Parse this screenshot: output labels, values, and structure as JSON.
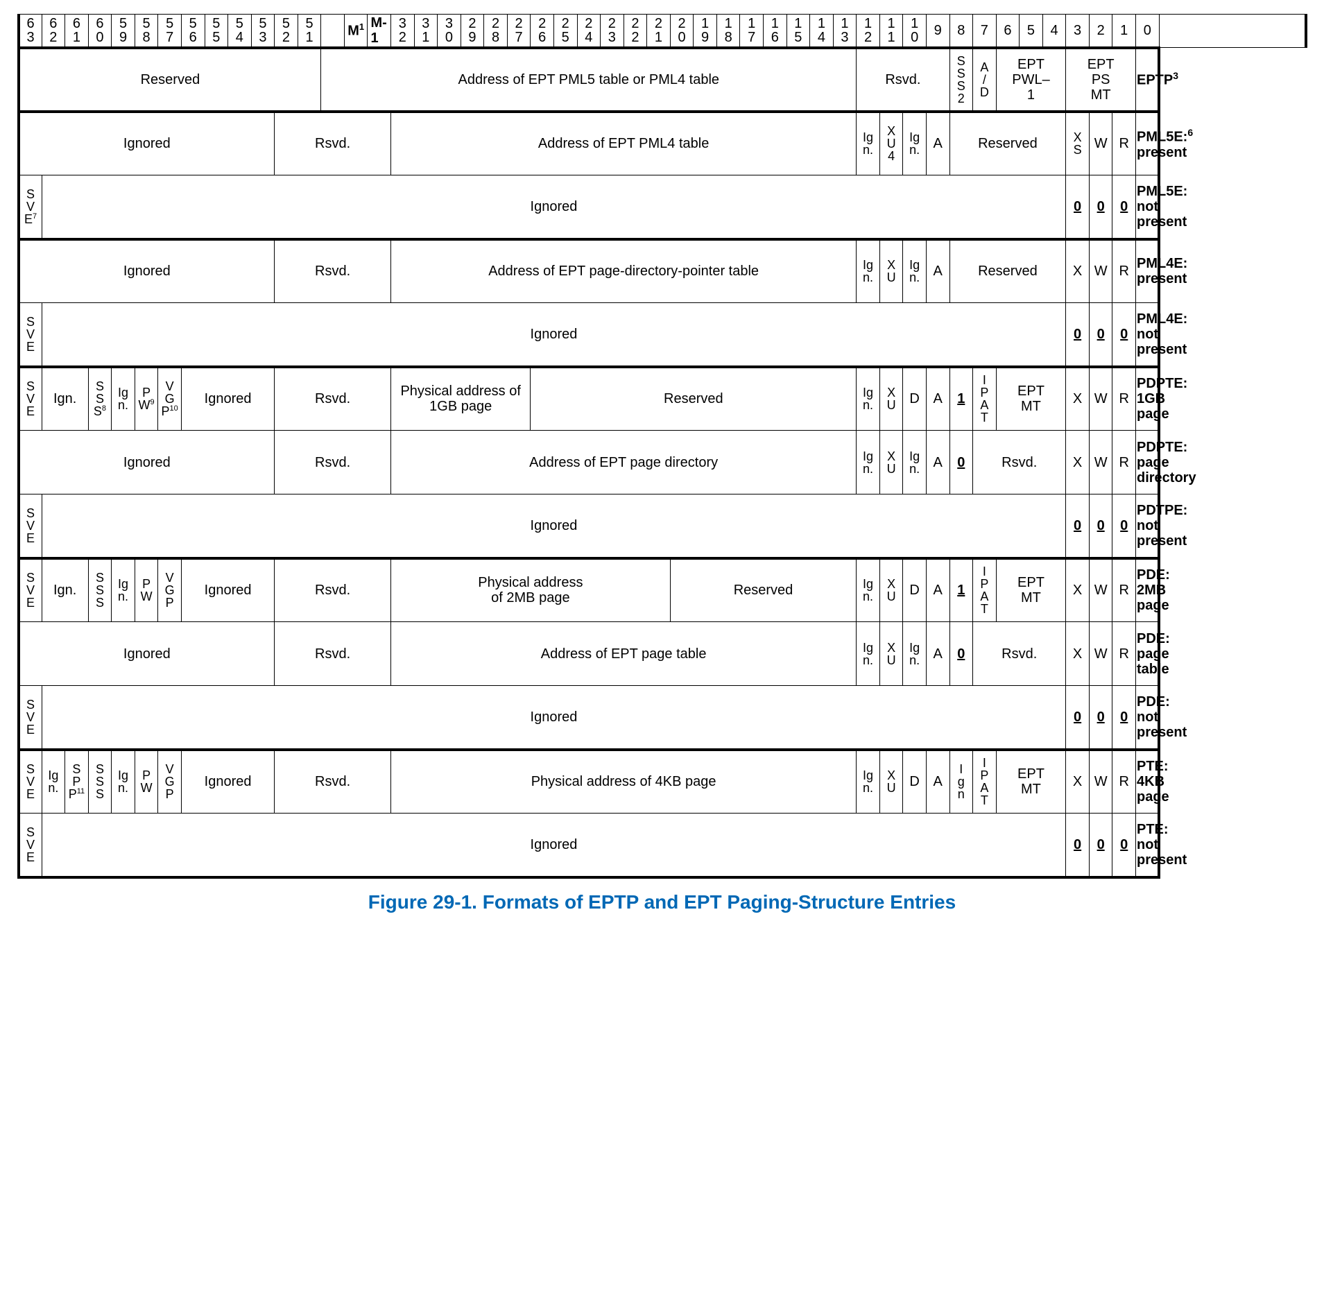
{
  "caption": "Figure 29-1.  Formats of EPTP and EPT Paging-Structure Entries",
  "colors": {
    "caption": "#0068b5",
    "border": "#000000",
    "bg": "#ffffff",
    "text": "#000000"
  },
  "headerBits": [
    63,
    62,
    61,
    60,
    59,
    58,
    57,
    56,
    55,
    54,
    53,
    52,
    51,
    null,
    "M",
    null,
    32,
    31,
    30,
    29,
    28,
    27,
    26,
    25,
    24,
    23,
    22,
    21,
    20,
    19,
    18,
    17,
    16,
    15,
    14,
    13,
    12,
    11,
    10,
    9,
    8,
    7,
    6,
    5,
    4,
    3,
    2,
    1,
    0
  ],
  "headerSpecial": {
    "m_sup": "1",
    "mminus": "M-1"
  },
  "layout": {
    "totalBitCols": 49,
    "bitColWidthPx": 27,
    "labelColWidthPx": 170,
    "rowHeightPx": 92,
    "outerBorderPx": 4,
    "innerBorderPx": 1
  },
  "labels": {
    "reserved": "Reserved",
    "rsvd": "Rsvd.",
    "ignored": "Ignored",
    "ign": "Ig\nn.",
    "sve": "S\nV\nE",
    "sve7": "S\nV\nE⁷",
    "xu": "X\nU",
    "xu4": "X\nU\n4",
    "xs": "X\nS",
    "a": "A",
    "d": "D",
    "one": "1",
    "zero": "0",
    "ipat": "I\nP\nA\nT",
    "eptmt": "EPT\nMT",
    "eptpwl1": "EPT\nPWL–\n1",
    "eptpsmt": "EPT\nPS\nMT",
    "sss": "S\nS\nS",
    "sss2": "S\nS\nS\n2",
    "sss8": "S\nS\nS\n8",
    "pw": "P\nW",
    "pw9": "P\nW\n9",
    "vgp": "V\nG\nP",
    "vgp10": "V\nG\nP\n10",
    "spp11": "S\nP\nP\n11",
    "ad": "A\n/\nD",
    "x": "X",
    "w": "W",
    "r": "R",
    "i_g_n": "I\ng\nn"
  },
  "rows": [
    {
      "name": "EPTP",
      "sup": "3",
      "cells": [
        {
          "span": 13,
          "text": "Reserved"
        },
        {
          "span": 23,
          "text": "Address of EPT PML5 table or PML4 table"
        },
        {
          "span": 4,
          "text": "Rsvd."
        },
        {
          "span": 1,
          "v": "S\nS\nS\n2"
        },
        {
          "span": 1,
          "v": "A\n/\nD"
        },
        {
          "span": 3,
          "text": "EPT\nPWL–\n1"
        },
        {
          "span": 3,
          "text": "EPT\nPS\nMT"
        }
      ]
    },
    {
      "name": "PML5E: present",
      "sup": "6",
      "heavy": true,
      "cells": [
        {
          "span": 11,
          "text": "Ignored"
        },
        {
          "span": 5,
          "text": "Rsvd."
        },
        {
          "span": 20,
          "text": "Address of EPT PML4 table"
        },
        {
          "span": 1,
          "v": "Ig\nn."
        },
        {
          "span": 1,
          "v": "X\nU\n4"
        },
        {
          "span": 1,
          "v": "Ig\nn."
        },
        {
          "span": 1,
          "text": "A"
        },
        {
          "span": 5,
          "text": "Reserved"
        },
        {
          "span": 1,
          "v": "X\nS"
        },
        {
          "span": 1,
          "text": "W"
        },
        {
          "span": 1,
          "text": "R"
        }
      ]
    },
    {
      "name": "PML5E: not present",
      "cells": [
        {
          "span": 1,
          "v": "S\nV\nE",
          "sup": "7"
        },
        {
          "span": 44,
          "text": "Ignored"
        },
        {
          "span": 1,
          "u": "0"
        },
        {
          "span": 1,
          "u": "0"
        },
        {
          "span": 1,
          "u": "0"
        }
      ]
    },
    {
      "name": "PML4E: present",
      "heavy": true,
      "cells": [
        {
          "span": 11,
          "text": "Ignored"
        },
        {
          "span": 5,
          "text": "Rsvd."
        },
        {
          "span": 20,
          "text": "Address of EPT page-directory-pointer table"
        },
        {
          "span": 1,
          "v": "Ig\nn."
        },
        {
          "span": 1,
          "v": "X\nU"
        },
        {
          "span": 1,
          "v": "Ig\nn."
        },
        {
          "span": 1,
          "text": "A"
        },
        {
          "span": 5,
          "text": "Reserved"
        },
        {
          "span": 1,
          "text": "X"
        },
        {
          "span": 1,
          "text": "W"
        },
        {
          "span": 1,
          "text": "R"
        }
      ]
    },
    {
      "name": "PML4E: not present",
      "cells": [
        {
          "span": 1,
          "v": "S\nV\nE"
        },
        {
          "span": 44,
          "text": "Ignored"
        },
        {
          "span": 1,
          "u": "0"
        },
        {
          "span": 1,
          "u": "0"
        },
        {
          "span": 1,
          "u": "0"
        }
      ]
    },
    {
      "name": "PDPTE: 1GB page",
      "heavy": true,
      "cells": [
        {
          "span": 1,
          "v": "S\nV\nE"
        },
        {
          "span": 2,
          "text": "Ign."
        },
        {
          "span": 1,
          "v": "S\nS\nS",
          "sup": "8"
        },
        {
          "span": 1,
          "v": "Ig\nn."
        },
        {
          "span": 1,
          "v": "P\nW",
          "sup": "9"
        },
        {
          "span": 1,
          "v": "V\nG\nP",
          "sup": "10"
        },
        {
          "span": 4,
          "text": "Ignored"
        },
        {
          "span": 5,
          "text": "Rsvd."
        },
        {
          "span": 6,
          "text": "Physical address of 1GB page"
        },
        {
          "span": 14,
          "text": "Reserved"
        },
        {
          "span": 1,
          "v": "Ig\nn."
        },
        {
          "span": 1,
          "v": "X\nU"
        },
        {
          "span": 1,
          "text": "D"
        },
        {
          "span": 1,
          "text": "A"
        },
        {
          "span": 1,
          "u": "1"
        },
        {
          "span": 1,
          "v": "I\nP\nA\nT"
        },
        {
          "span": 3,
          "text": "EPT\nMT"
        },
        {
          "span": 1,
          "text": "X"
        },
        {
          "span": 1,
          "text": "W"
        },
        {
          "span": 1,
          "text": "R"
        }
      ]
    },
    {
      "name": "PDPTE: page directory",
      "cells": [
        {
          "span": 11,
          "text": "Ignored"
        },
        {
          "span": 5,
          "text": "Rsvd."
        },
        {
          "span": 20,
          "text": "Address of EPT page directory"
        },
        {
          "span": 1,
          "v": "Ig\nn."
        },
        {
          "span": 1,
          "v": "X\nU"
        },
        {
          "span": 1,
          "v": "Ig\nn."
        },
        {
          "span": 1,
          "text": "A"
        },
        {
          "span": 1,
          "u": "0"
        },
        {
          "span": 4,
          "text": "Rsvd."
        },
        {
          "span": 1,
          "text": "X"
        },
        {
          "span": 1,
          "text": "W"
        },
        {
          "span": 1,
          "text": "R"
        }
      ]
    },
    {
      "name": "PDTPE: not present",
      "cells": [
        {
          "span": 1,
          "v": "S\nV\nE"
        },
        {
          "span": 44,
          "text": "Ignored"
        },
        {
          "span": 1,
          "u": "0"
        },
        {
          "span": 1,
          "u": "0"
        },
        {
          "span": 1,
          "u": "0"
        }
      ]
    },
    {
      "name": "PDE: 2MB page",
      "heavy": true,
      "cells": [
        {
          "span": 1,
          "v": "S\nV\nE"
        },
        {
          "span": 2,
          "text": "Ign."
        },
        {
          "span": 1,
          "v": "S\nS\nS"
        },
        {
          "span": 1,
          "v": "Ig\nn."
        },
        {
          "span": 1,
          "v": "P\nW"
        },
        {
          "span": 1,
          "v": "V\nG\nP"
        },
        {
          "span": 4,
          "text": "Ignored"
        },
        {
          "span": 5,
          "text": "Rsvd."
        },
        {
          "span": 12,
          "text": "Physical address\nof 2MB page"
        },
        {
          "span": 8,
          "text": "Reserved"
        },
        {
          "span": 1,
          "v": "Ig\nn."
        },
        {
          "span": 1,
          "v": "X\nU"
        },
        {
          "span": 1,
          "text": "D"
        },
        {
          "span": 1,
          "text": "A"
        },
        {
          "span": 1,
          "u": "1"
        },
        {
          "span": 1,
          "v": "I\nP\nA\nT"
        },
        {
          "span": 3,
          "text": "EPT\nMT"
        },
        {
          "span": 1,
          "text": "X"
        },
        {
          "span": 1,
          "text": "W"
        },
        {
          "span": 1,
          "text": "R"
        }
      ]
    },
    {
      "name": "PDE: page table",
      "cells": [
        {
          "span": 11,
          "text": "Ignored"
        },
        {
          "span": 5,
          "text": "Rsvd."
        },
        {
          "span": 20,
          "text": "Address of EPT page table"
        },
        {
          "span": 1,
          "v": "Ig\nn."
        },
        {
          "span": 1,
          "v": "X\nU"
        },
        {
          "span": 1,
          "v": "Ig\nn."
        },
        {
          "span": 1,
          "text": "A"
        },
        {
          "span": 1,
          "u": "0"
        },
        {
          "span": 4,
          "text": "Rsvd."
        },
        {
          "span": 1,
          "text": "X"
        },
        {
          "span": 1,
          "text": "W"
        },
        {
          "span": 1,
          "text": "R"
        }
      ]
    },
    {
      "name": "PDE: not present",
      "cells": [
        {
          "span": 1,
          "v": "S\nV\nE"
        },
        {
          "span": 44,
          "text": "Ignored"
        },
        {
          "span": 1,
          "u": "0"
        },
        {
          "span": 1,
          "u": "0"
        },
        {
          "span": 1,
          "u": "0"
        }
      ]
    },
    {
      "name": "PTE: 4KB page",
      "heavy": true,
      "cells": [
        {
          "span": 1,
          "v": "S\nV\nE"
        },
        {
          "span": 1,
          "v": "Ig\nn."
        },
        {
          "span": 1,
          "v": "S\nP\nP",
          "sup": "11"
        },
        {
          "span": 1,
          "v": "S\nS\nS"
        },
        {
          "span": 1,
          "v": "Ig\nn."
        },
        {
          "span": 1,
          "v": "P\nW"
        },
        {
          "span": 1,
          "v": "V\nG\nP"
        },
        {
          "span": 4,
          "text": "Ignored"
        },
        {
          "span": 5,
          "text": "Rsvd."
        },
        {
          "span": 20,
          "text": "Physical address of 4KB page"
        },
        {
          "span": 1,
          "v": "Ig\nn."
        },
        {
          "span": 1,
          "v": "X\nU"
        },
        {
          "span": 1,
          "text": "D"
        },
        {
          "span": 1,
          "text": "A"
        },
        {
          "span": 1,
          "v": "I\ng\nn"
        },
        {
          "span": 1,
          "v": "I\nP\nA\nT"
        },
        {
          "span": 3,
          "text": "EPT\nMT"
        },
        {
          "span": 1,
          "text": "X"
        },
        {
          "span": 1,
          "text": "W"
        },
        {
          "span": 1,
          "text": "R"
        }
      ]
    },
    {
      "name": "PTE: not present",
      "last": true,
      "cells": [
        {
          "span": 1,
          "v": "S\nV\nE"
        },
        {
          "span": 44,
          "text": "Ignored"
        },
        {
          "span": 1,
          "u": "0"
        },
        {
          "span": 1,
          "u": "0"
        },
        {
          "span": 1,
          "u": "0"
        }
      ]
    }
  ]
}
